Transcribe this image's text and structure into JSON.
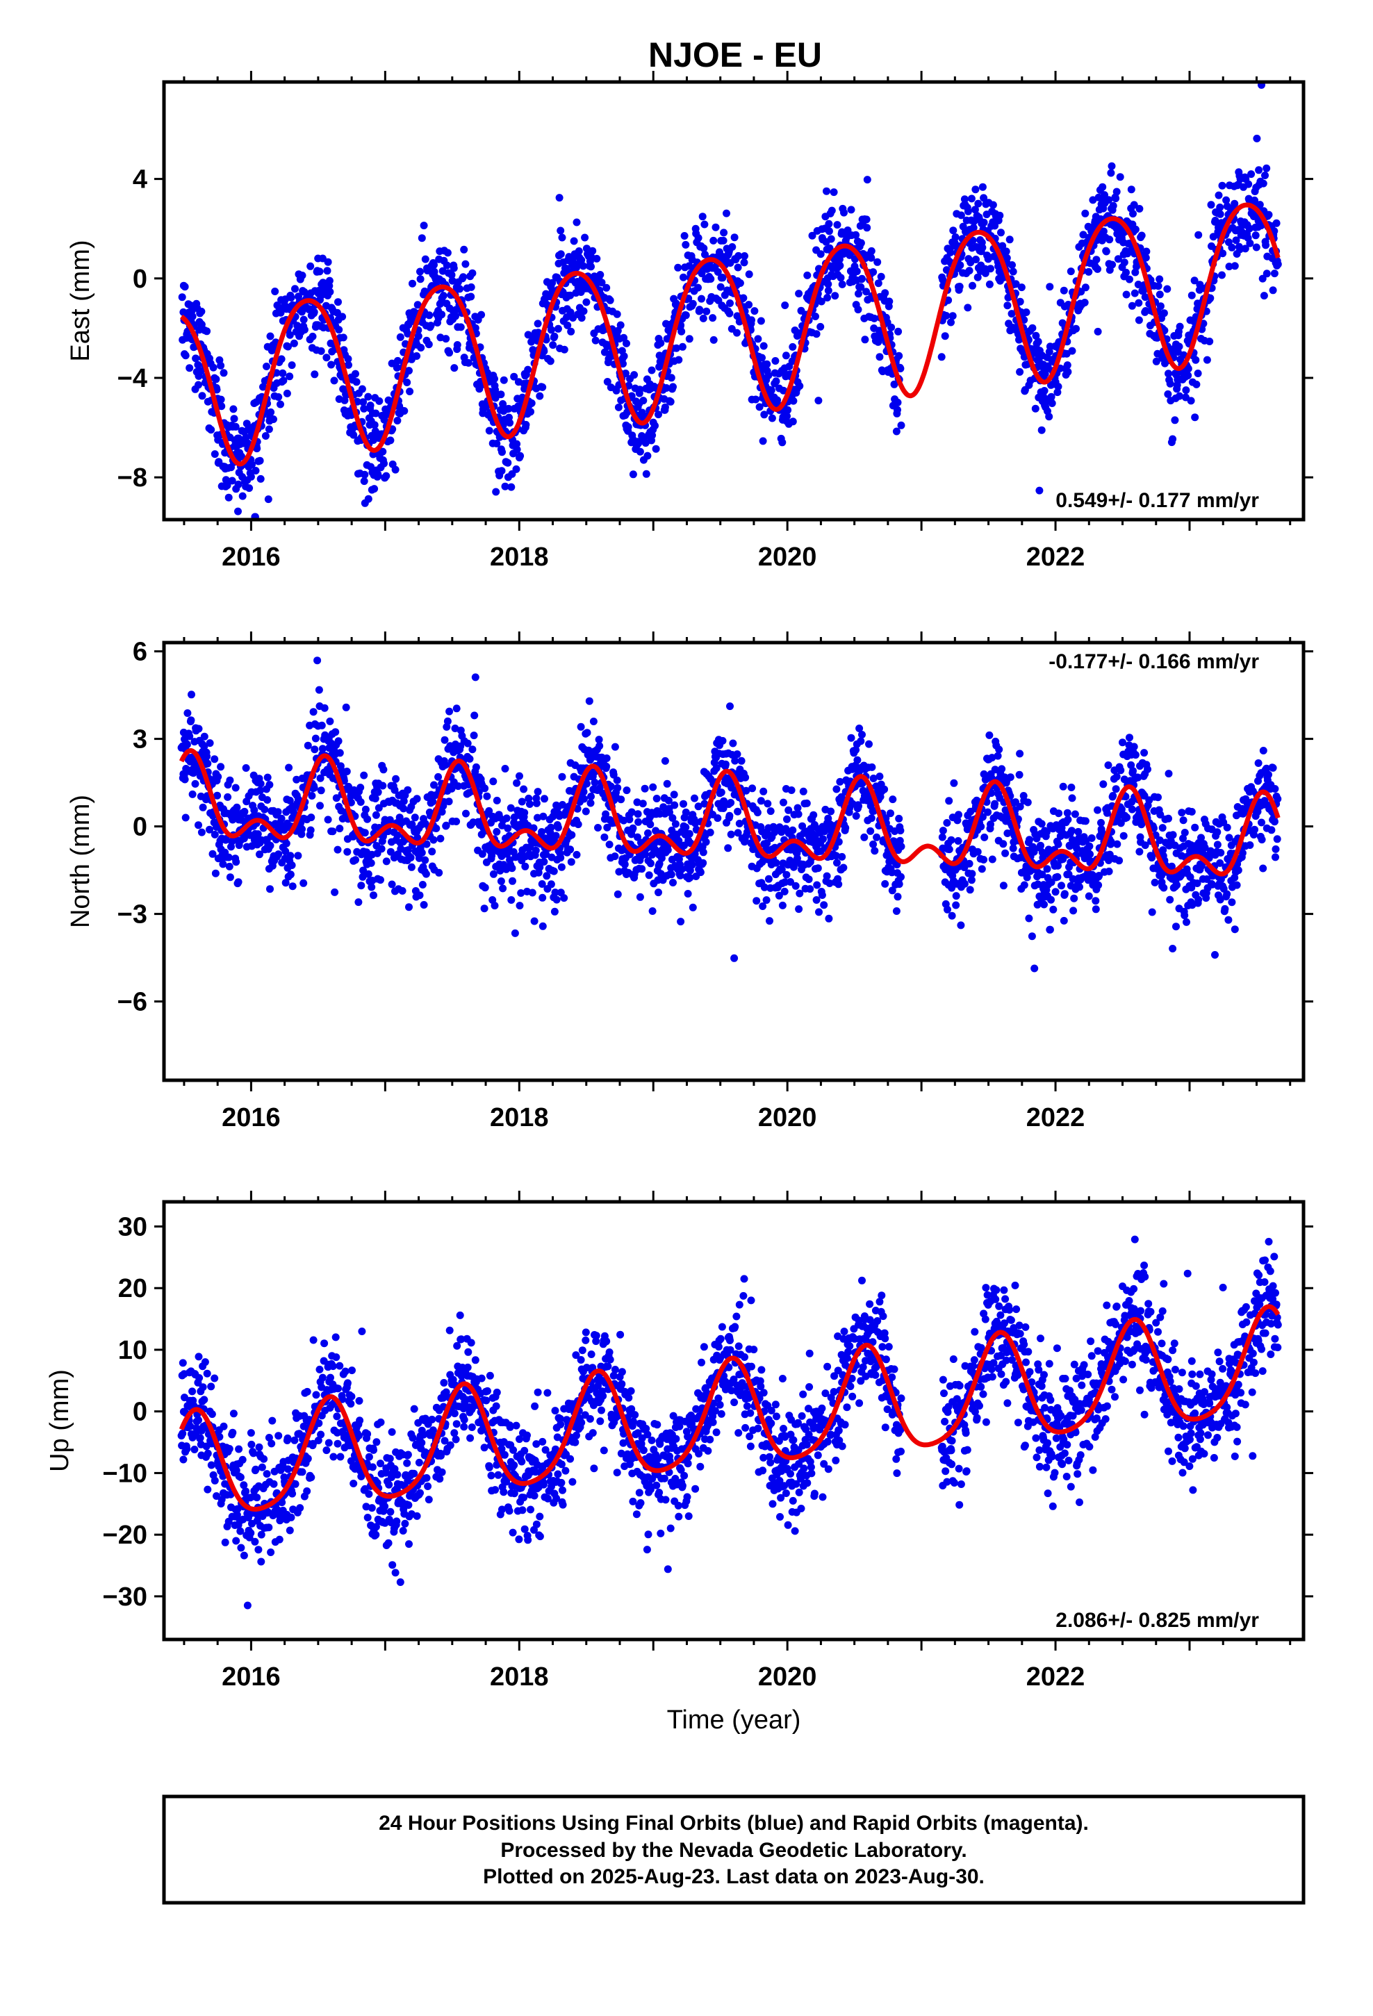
{
  "title": "NJOE - EU",
  "colors": {
    "points": "#0000ee",
    "model": "#ee0000",
    "frame": "#000000"
  },
  "footer": {
    "line1": "24 Hour Positions Using Final Orbits (blue) and Rapid Orbits (magenta).",
    "line2": "Processed by the Nevada Geodetic Laboratory.",
    "line3": "Plotted on 2025-Aug-23. Last data on 2023-Aug-30."
  },
  "chart_data": [
    {
      "type": "scatter",
      "panel": "east",
      "ylabel": "East (mm)",
      "xlabel": "",
      "xlim": [
        2015.35,
        2023.85
      ],
      "ylim": [
        -9.7,
        7.9
      ],
      "xticks": [
        2016,
        2018,
        2020,
        2022
      ],
      "yticks": [
        -8,
        -4,
        0,
        4
      ],
      "rate_label": "0.549+/- 0.177 mm/yr",
      "rate_position": "bottom-right",
      "series": [
        {
          "kind": "points",
          "x_range": [
            2015.48,
            2023.66
          ],
          "gaps": [
            [
              2020.85,
              2021.15
            ]
          ],
          "model": {
            "offset": -2.0,
            "trend": 0.549,
            "ref_year": 2019.5,
            "annual_amp": 3.15,
            "annual_peak": 0.42,
            "semi_amp": 0.35,
            "semi_peak": 0.17
          },
          "noise_sd": 1.0,
          "n_points": 2850
        },
        {
          "kind": "line",
          "name": "",
          "model": {
            "offset": -2.0,
            "trend": 0.549,
            "ref_year": 2019.5,
            "annual_amp": 3.15,
            "annual_peak": 0.42,
            "semi_amp": 0.35,
            "semi_peak": 0.17
          }
        }
      ]
    },
    {
      "type": "scatter",
      "panel": "north",
      "ylabel": "North (mm)",
      "xlabel": "",
      "xlim": [
        2015.35,
        2023.85
      ],
      "ylim": [
        -8.7,
        6.3
      ],
      "xticks": [
        2016,
        2018,
        2020,
        2022
      ],
      "yticks": [
        -6,
        -3,
        0,
        3,
        6
      ],
      "rate_label": "-0.177+/- 0.166 mm/yr",
      "rate_position": "top-right",
      "series": [
        {
          "kind": "points",
          "x_range": [
            2015.48,
            2023.66
          ],
          "gaps": [
            [
              2020.85,
              2021.15
            ]
          ],
          "model": {
            "offset": 0.0,
            "trend": -0.177,
            "ref_year": 2019.5,
            "annual_amp": 1.15,
            "annual_peak": 0.55,
            "semi_amp": 0.75,
            "semi_peak": 0.05
          },
          "noise_sd": 0.9,
          "n_points": 2850
        },
        {
          "kind": "line",
          "name": "",
          "model": {
            "offset": 0.0,
            "trend": -0.177,
            "ref_year": 2019.5,
            "annual_amp": 1.15,
            "annual_peak": 0.55,
            "semi_amp": 0.75,
            "semi_peak": 0.05
          }
        }
      ]
    },
    {
      "type": "scatter",
      "panel": "up",
      "ylabel": "Up (mm)",
      "xlabel": "Time (year)",
      "xlim": [
        2015.35,
        2023.85
      ],
      "ylim": [
        -37,
        34
      ],
      "xticks": [
        2016,
        2018,
        2020,
        2022
      ],
      "yticks": [
        -30,
        -20,
        -10,
        0,
        10,
        20,
        30
      ],
      "rate_label": "2.086+/- 0.825 mm/yr",
      "rate_position": "bottom-right",
      "series": [
        {
          "kind": "points",
          "x_range": [
            2015.48,
            2023.66
          ],
          "gaps": [
            [
              2020.85,
              2021.15
            ]
          ],
          "model": {
            "offset": -1.5,
            "trend": 2.086,
            "ref_year": 2019.5,
            "annual_amp": 8.5,
            "annual_peak": 0.58,
            "semi_amp": 1.5,
            "semi_peak": 0.1
          },
          "noise_sd": 4.5,
          "n_points": 2850
        },
        {
          "kind": "line",
          "name": "",
          "model": {
            "offset": -1.5,
            "trend": 2.086,
            "ref_year": 2019.5,
            "annual_amp": 8.5,
            "annual_peak": 0.58,
            "semi_amp": 1.5,
            "semi_peak": 0.1
          }
        }
      ]
    }
  ]
}
